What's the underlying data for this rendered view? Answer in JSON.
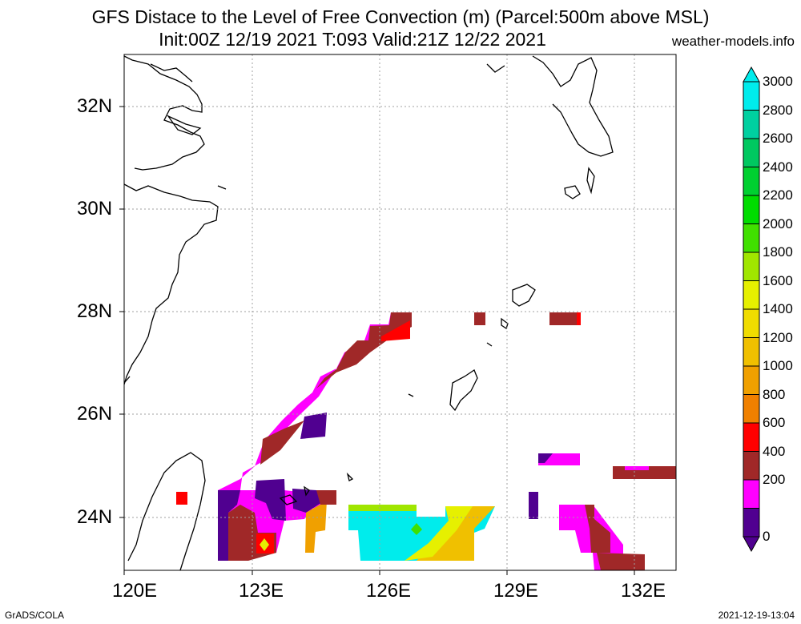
{
  "title": {
    "line1": "GFS Distace to the Level of Free Convection (m) (Parcel:500m above MSL)",
    "line2": "Init:00Z 12/19 2021 T:093 Valid:21Z 12/22 2021"
  },
  "site": "weather-models.info",
  "footer": {
    "left": "GrADS/COLA",
    "right": "2021-12-19-13:04"
  },
  "lon_labels": [
    "120E",
    "123E",
    "126E",
    "129E",
    "132E"
  ],
  "lat_labels": [
    "32N",
    "30N",
    "28N",
    "26N",
    "24N"
  ],
  "colorbar": {
    "labels": [
      "3000",
      "2800",
      "2600",
      "2400",
      "2200",
      "2000",
      "1800",
      "1600",
      "1400",
      "1200",
      "1000",
      "800",
      "600",
      "400",
      "200",
      "0"
    ],
    "colors": [
      "#00ecec",
      "#00d0a0",
      "#00c860",
      "#00d030",
      "#00dc00",
      "#40e000",
      "#a0e600",
      "#e6f000",
      "#f0dc00",
      "#f0c000",
      "#f0a000",
      "#f08000",
      "#ff0000",
      "#a02828",
      "#ff00ff",
      "#500090"
    ]
  }
}
